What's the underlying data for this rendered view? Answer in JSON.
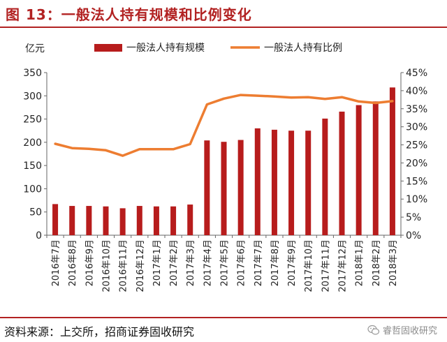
{
  "title": "图 13：一般法人持有规模和比例变化",
  "source": "资料来源：上交所，招商证券固收研究",
  "brand": "睿哲固收研究",
  "brand_icon": "wechat-icon",
  "colors": {
    "bar": "#b71c1c",
    "line": "#ed7d31",
    "accent": "#b22222"
  },
  "chart_data": {
    "type": "bar",
    "categories": [
      "2016年7月",
      "2016年8月",
      "2016年9月",
      "2016年10月",
      "2016年11月",
      "2016年12月",
      "2017年1月",
      "2017年2月",
      "2017年3月",
      "2017年4月",
      "2017年5月",
      "2017年6月",
      "2017年7月",
      "2017年8月",
      "2017年9月",
      "2017年10月",
      "2017年11月",
      "2017年12月",
      "2018年1月",
      "2018年2月",
      "2018年3月"
    ],
    "series": [
      {
        "name": "一般法人持有规模",
        "type": "bar",
        "axis": "left",
        "values": [
          67,
          63,
          63,
          62,
          58,
          63,
          62,
          62,
          66,
          204,
          201,
          205,
          230,
          227,
          225,
          225,
          251,
          266,
          280,
          288,
          318
        ]
      },
      {
        "name": "一般法人持有比例",
        "type": "line",
        "axis": "right",
        "values": [
          25.3,
          24.1,
          23.9,
          23.5,
          22.0,
          23.8,
          23.8,
          23.8,
          25.2,
          36.2,
          37.8,
          38.8,
          38.6,
          38.4,
          38.1,
          38.2,
          37.7,
          38.2,
          37.0,
          36.6,
          37.1
        ]
      }
    ],
    "ylabel": "亿元",
    "ylim": [
      0,
      350
    ],
    "yticks": [
      "0",
      "50",
      "100",
      "150",
      "200",
      "250",
      "300",
      "350"
    ],
    "y2lim": [
      0,
      45
    ],
    "y2ticks": [
      "0%",
      "5%",
      "10%",
      "15%",
      "20%",
      "25%",
      "30%",
      "35%",
      "40%",
      "45%"
    ],
    "legend_position": "top",
    "grid": false
  }
}
